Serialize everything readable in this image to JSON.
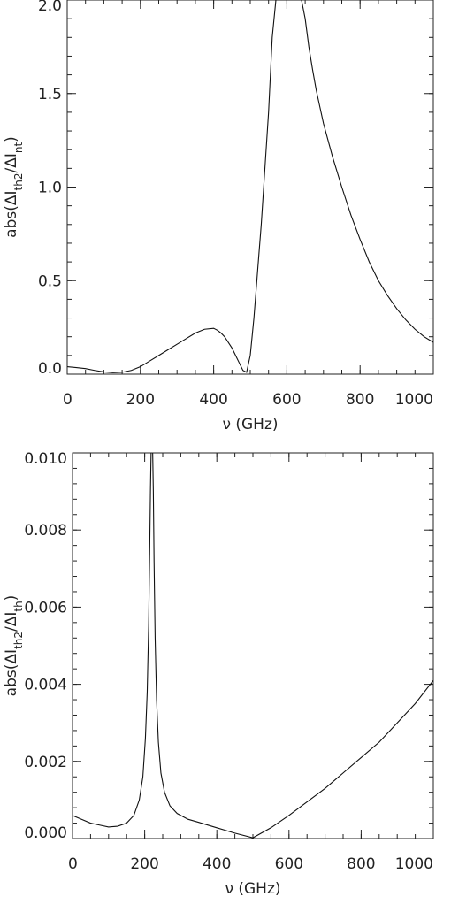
{
  "chart_data": [
    {
      "type": "line",
      "ylabel": "abs(ΔI_th2/ΔI_nt)",
      "xlabel": "ν (GHz)",
      "xlim": [
        0,
        1000
      ],
      "ylim": [
        0,
        2.0
      ],
      "xticks": [
        "0",
        "200",
        "400",
        "600",
        "800",
        "1000"
      ],
      "yticks": [
        "0.0",
        "0.5",
        "1.0",
        "1.5",
        "2.0"
      ],
      "grid": false,
      "series": [
        {
          "x": [
            0,
            25,
            50,
            75,
            100,
            125,
            150,
            175,
            200,
            225,
            250,
            275,
            300,
            325,
            350,
            375,
            400,
            410,
            420,
            430,
            440,
            450,
            460,
            470,
            480,
            490,
            500,
            510,
            520,
            530,
            540,
            550,
            560,
            570,
            580,
            590,
            600,
            610,
            620,
            630,
            640,
            650,
            660,
            670,
            680,
            690,
            700,
            725,
            750,
            775,
            800,
            825,
            850,
            875,
            900,
            925,
            950,
            975,
            1000
          ],
          "y": [
            0.04,
            0.035,
            0.03,
            0.02,
            0.012,
            0.008,
            0.01,
            0.02,
            0.04,
            0.07,
            0.1,
            0.13,
            0.16,
            0.19,
            0.22,
            0.24,
            0.245,
            0.235,
            0.22,
            0.2,
            0.17,
            0.14,
            0.1,
            0.06,
            0.02,
            0.01,
            0.1,
            0.3,
            0.55,
            0.8,
            1.1,
            1.4,
            1.8,
            2.0,
            2.0,
            2.0,
            2.0,
            2.0,
            2.0,
            2.0,
            2.0,
            1.9,
            1.75,
            1.63,
            1.52,
            1.43,
            1.34,
            1.16,
            1.0,
            0.85,
            0.72,
            0.6,
            0.5,
            0.42,
            0.35,
            0.29,
            0.24,
            0.2,
            0.17
          ]
        }
      ]
    },
    {
      "type": "line",
      "ylabel": "abs(ΔI_th2/ΔI_th)",
      "xlabel": "ν (GHz)",
      "xlim": [
        0,
        1000
      ],
      "ylim": [
        0,
        0.01
      ],
      "xticks": [
        "0",
        "200",
        "400",
        "600",
        "800",
        "1000"
      ],
      "yticks": [
        "0.000",
        "0.002",
        "0.004",
        "0.006",
        "0.008",
        "0.010"
      ],
      "grid": false,
      "series": [
        {
          "x": [
            0,
            25,
            50,
            75,
            100,
            125,
            150,
            170,
            185,
            195,
            202,
            207,
            211,
            214,
            216,
            218,
            219,
            220,
            221,
            222,
            224,
            226,
            229,
            233,
            238,
            245,
            255,
            270,
            290,
            320,
            350,
            400,
            450,
            500,
            550,
            600,
            650,
            700,
            750,
            800,
            850,
            900,
            950,
            1000
          ],
          "y": [
            0.0006,
            0.0005,
            0.0004,
            0.00035,
            0.0003,
            0.00032,
            0.0004,
            0.0006,
            0.001,
            0.0016,
            0.0026,
            0.0038,
            0.0055,
            0.0075,
            0.009,
            0.0101,
            0.0101,
            0.0101,
            0.0101,
            0.0101,
            0.009,
            0.0072,
            0.0052,
            0.0036,
            0.0025,
            0.0017,
            0.0012,
            0.00085,
            0.00065,
            0.0005,
            0.00042,
            0.00028,
            0.00014,
            2e-05,
            0.00028,
            0.0006,
            0.00095,
            0.0013,
            0.0017,
            0.0021,
            0.0025,
            0.003,
            0.0035,
            0.0041
          ]
        }
      ]
    }
  ]
}
